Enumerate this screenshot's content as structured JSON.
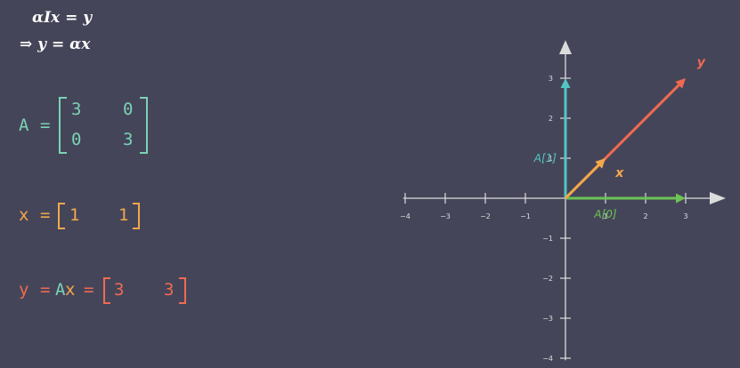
{
  "formulas": {
    "line1": "αIx = y",
    "line2": "⇒ y = αx"
  },
  "matrix_a": {
    "label": "A",
    "equals": "=",
    "rows": [
      [
        "3",
        "0"
      ],
      [
        "0",
        "3"
      ]
    ]
  },
  "vector_x": {
    "label": "x",
    "equals": "=",
    "values": [
      "1",
      "1"
    ]
  },
  "vector_y": {
    "label": "y",
    "eq1": "=",
    "product_a": "A",
    "product_x": "x",
    "eq2": "=",
    "values": [
      "3",
      "3"
    ]
  },
  "colors": {
    "background": "#454559",
    "teal": "#7ad3b4",
    "orange": "#f4a84a",
    "red": "#f06a52",
    "green": "#6cc455",
    "cyan": "#52c7c2",
    "axis": "#dcdcdc"
  },
  "plot": {
    "x_ticks": [
      "−4",
      "−3",
      "−2",
      "−1",
      "1",
      "2",
      "3"
    ],
    "y_ticks": [
      "3",
      "2",
      "1",
      "−1",
      "−2",
      "−3",
      "−4"
    ],
    "vectors": [
      {
        "name": "A[1]",
        "from": [
          0,
          0
        ],
        "to": [
          0,
          3
        ],
        "color": "cyan",
        "label": "A[1]"
      },
      {
        "name": "A[0]",
        "from": [
          0,
          0
        ],
        "to": [
          3,
          0
        ],
        "color": "green",
        "label": "A[0]"
      },
      {
        "name": "y",
        "from": [
          0,
          0
        ],
        "to": [
          3,
          3
        ],
        "color": "red",
        "label": "y"
      },
      {
        "name": "x",
        "from": [
          0,
          0
        ],
        "to": [
          1,
          1
        ],
        "color": "orange",
        "label": "x"
      }
    ]
  }
}
